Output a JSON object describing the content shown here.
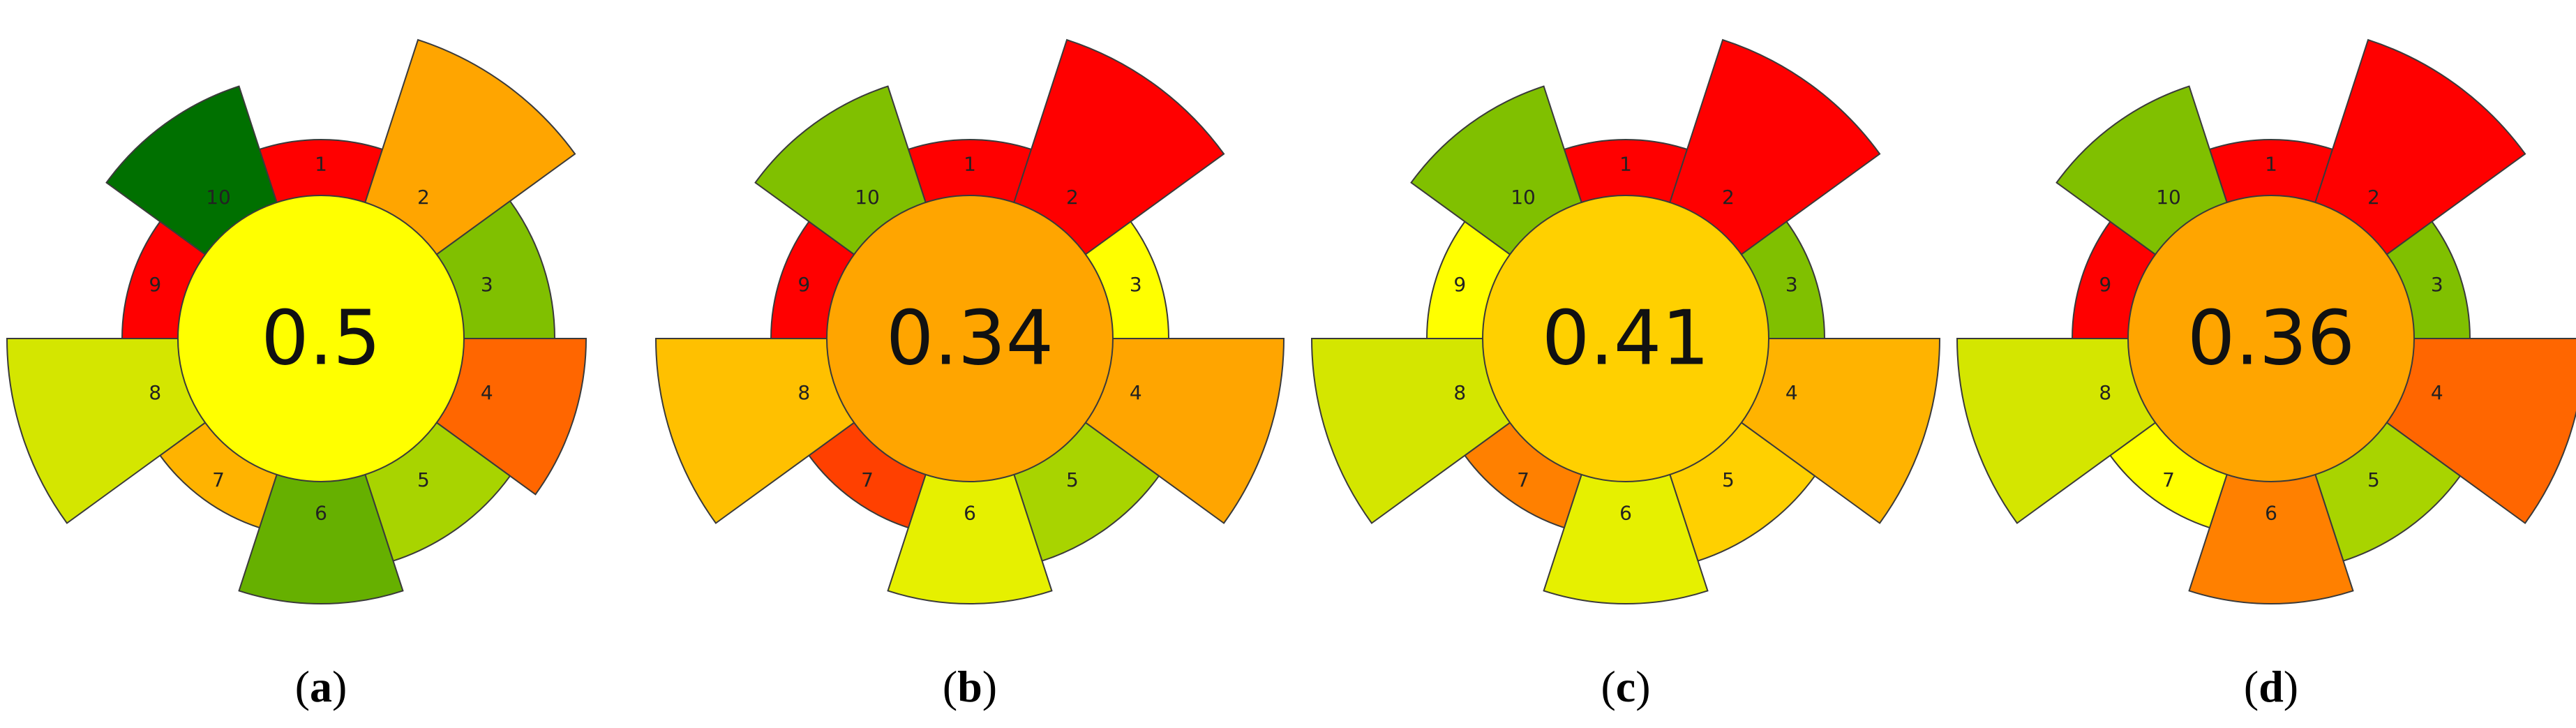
{
  "panels": [
    {
      "letter": "a",
      "score": "0.5",
      "center_color": "#ffff00",
      "segments": [
        {
          "label": "1",
          "color": "#ff0000",
          "weight": 1
        },
        {
          "label": "2",
          "color": "#ffa500",
          "weight": 4
        },
        {
          "label": "3",
          "color": "#80c000",
          "weight": 2
        },
        {
          "label": "4",
          "color": "#ff6600",
          "weight": 3
        },
        {
          "label": "5",
          "color": "#a8d400",
          "weight": 2
        },
        {
          "label": "6",
          "color": "#66b000",
          "weight": 3
        },
        {
          "label": "7",
          "color": "#ffb300",
          "weight": 1
        },
        {
          "label": "8",
          "color": "#d4e600",
          "weight": 4
        },
        {
          "label": "9",
          "color": "#ff0000",
          "weight": 1
        },
        {
          "label": "10",
          "color": "#007000",
          "weight": 3
        }
      ]
    },
    {
      "letter": "b",
      "score": "0.34",
      "center_color": "#ffa500",
      "segments": [
        {
          "label": "1",
          "color": "#ff0000",
          "weight": 1
        },
        {
          "label": "2",
          "color": "#ff0000",
          "weight": 4
        },
        {
          "label": "3",
          "color": "#ffff00",
          "weight": 1
        },
        {
          "label": "4",
          "color": "#ffa500",
          "weight": 4
        },
        {
          "label": "5",
          "color": "#a8d400",
          "weight": 2
        },
        {
          "label": "6",
          "color": "#e6f000",
          "weight": 3
        },
        {
          "label": "7",
          "color": "#ff4000",
          "weight": 1
        },
        {
          "label": "8",
          "color": "#ffc000",
          "weight": 4
        },
        {
          "label": "9",
          "color": "#ff0000",
          "weight": 1
        },
        {
          "label": "10",
          "color": "#80c000",
          "weight": 3
        }
      ]
    },
    {
      "letter": "c",
      "score": "0.41",
      "center_color": "#ffd000",
      "segments": [
        {
          "label": "1",
          "color": "#ff0000",
          "weight": 1
        },
        {
          "label": "2",
          "color": "#ff0000",
          "weight": 4
        },
        {
          "label": "3",
          "color": "#80c000",
          "weight": 1
        },
        {
          "label": "4",
          "color": "#ffb300",
          "weight": 4
        },
        {
          "label": "5",
          "color": "#ffd000",
          "weight": 2
        },
        {
          "label": "6",
          "color": "#e6f000",
          "weight": 3
        },
        {
          "label": "7",
          "color": "#ff8000",
          "weight": 1
        },
        {
          "label": "8",
          "color": "#d4e600",
          "weight": 4
        },
        {
          "label": "9",
          "color": "#ffff00",
          "weight": 1
        },
        {
          "label": "10",
          "color": "#80c000",
          "weight": 3
        }
      ]
    },
    {
      "letter": "d",
      "score": "0.36",
      "center_color": "#ffa500",
      "segments": [
        {
          "label": "1",
          "color": "#ff0000",
          "weight": 1
        },
        {
          "label": "2",
          "color": "#ff0000",
          "weight": 4
        },
        {
          "label": "3",
          "color": "#80c000",
          "weight": 1
        },
        {
          "label": "4",
          "color": "#ff6600",
          "weight": 4
        },
        {
          "label": "5",
          "color": "#a8d400",
          "weight": 2
        },
        {
          "label": "6",
          "color": "#ff8000",
          "weight": 3
        },
        {
          "label": "7",
          "color": "#ffff00",
          "weight": 1
        },
        {
          "label": "8",
          "color": "#d4e600",
          "weight": 4
        },
        {
          "label": "9",
          "color": "#ff0000",
          "weight": 1
        },
        {
          "label": "10",
          "color": "#80c000",
          "weight": 3
        }
      ]
    }
  ]
}
